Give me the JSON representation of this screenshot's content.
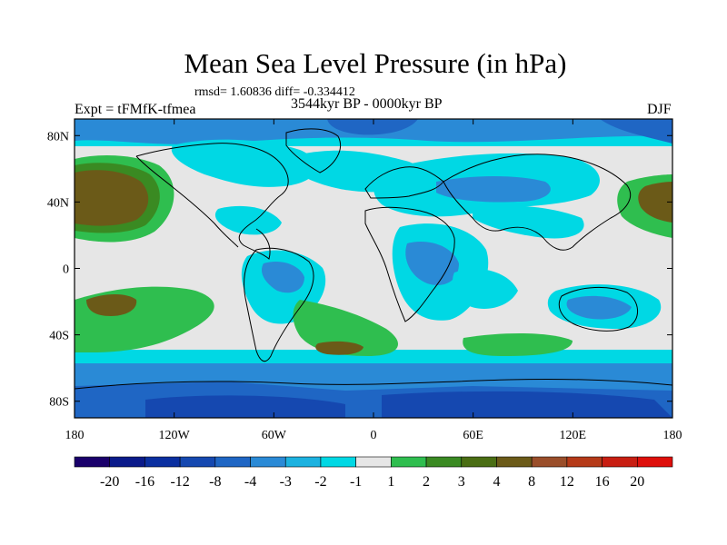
{
  "title": "Mean Sea Level Pressure (in hPa)",
  "stats": "rmsd= 1.60836 diff= -0.334412",
  "experiment": "Expt = tFMfK-tfmea",
  "period": "3544kyr BP - 0000kyr BP",
  "season": "DJF",
  "map": {
    "projection": "cylindrical equidistant",
    "lon_range": [
      -180,
      180
    ],
    "lat_range": [
      -90,
      90
    ],
    "lat_ticks": [
      {
        "value": 80,
        "label": "80N"
      },
      {
        "value": 40,
        "label": "40N"
      },
      {
        "value": 0,
        "label": "0"
      },
      {
        "value": -40,
        "label": "40S"
      },
      {
        "value": -80,
        "label": "80S"
      }
    ],
    "lon_ticks": [
      {
        "value": -180,
        "label": "180"
      },
      {
        "value": -120,
        "label": "120W"
      },
      {
        "value": -60,
        "label": "60W"
      },
      {
        "value": 0,
        "label": "0"
      },
      {
        "value": 60,
        "label": "60E"
      },
      {
        "value": 120,
        "label": "120E"
      },
      {
        "value": 180,
        "label": "180"
      }
    ]
  },
  "colorbar": {
    "colors": [
      "#1a006b",
      "#0a1a8a",
      "#0a2fa0",
      "#1548b0",
      "#1f66c4",
      "#2a8ad6",
      "#1cb2e0",
      "#00d8e4",
      "#e6e6e6",
      "#2fbe4f",
      "#3a8a22",
      "#4a6e14",
      "#6b5a18",
      "#9a4e2a",
      "#b53a18",
      "#c81e12",
      "#de0f0b"
    ],
    "labels": [
      "-20",
      "-16",
      "-12",
      "-8",
      "-4",
      "-3",
      "-2",
      "-1",
      "1",
      "2",
      "3",
      "4",
      "8",
      "12",
      "16",
      "20"
    ]
  }
}
